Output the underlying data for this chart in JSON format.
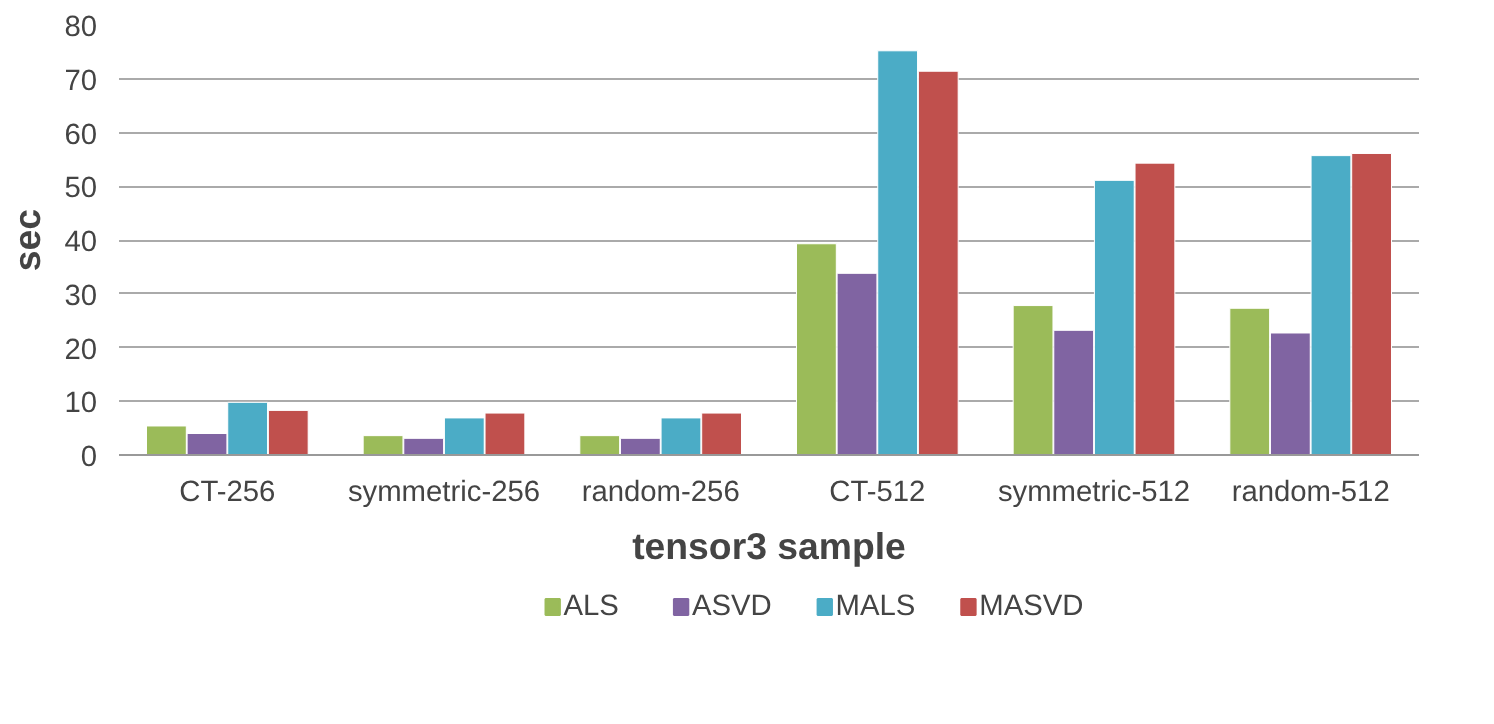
{
  "chart_data": {
    "type": "bar",
    "xlabel": "tensor3 sample",
    "ylabel": "sec",
    "categories": [
      "CT-256",
      "symmetric-256",
      "random-256",
      "CT-512",
      "symmetric-512",
      "random-512"
    ],
    "series": [
      {
        "name": "ALS",
        "color": "#9bbb59",
        "values": [
          5.4,
          3.6,
          3.6,
          39.3,
          27.8,
          27.3
        ]
      },
      {
        "name": "ASVD",
        "color": "#8064a2",
        "values": [
          4.0,
          3.1,
          3.1,
          33.8,
          23.2,
          22.7
        ]
      },
      {
        "name": "MALS",
        "color": "#4bacc6",
        "values": [
          9.8,
          6.9,
          6.9,
          75.2,
          51.1,
          55.7
        ]
      },
      {
        "name": "MASVD",
        "color": "#c0504d",
        "values": [
          8.3,
          7.8,
          7.8,
          71.4,
          54.3,
          56.1
        ]
      }
    ],
    "ylim": [
      0,
      80
    ],
    "yticks": [
      0,
      10,
      20,
      30,
      40,
      50,
      60,
      70,
      80
    ],
    "grid": "y",
    "legend": "bottom"
  }
}
